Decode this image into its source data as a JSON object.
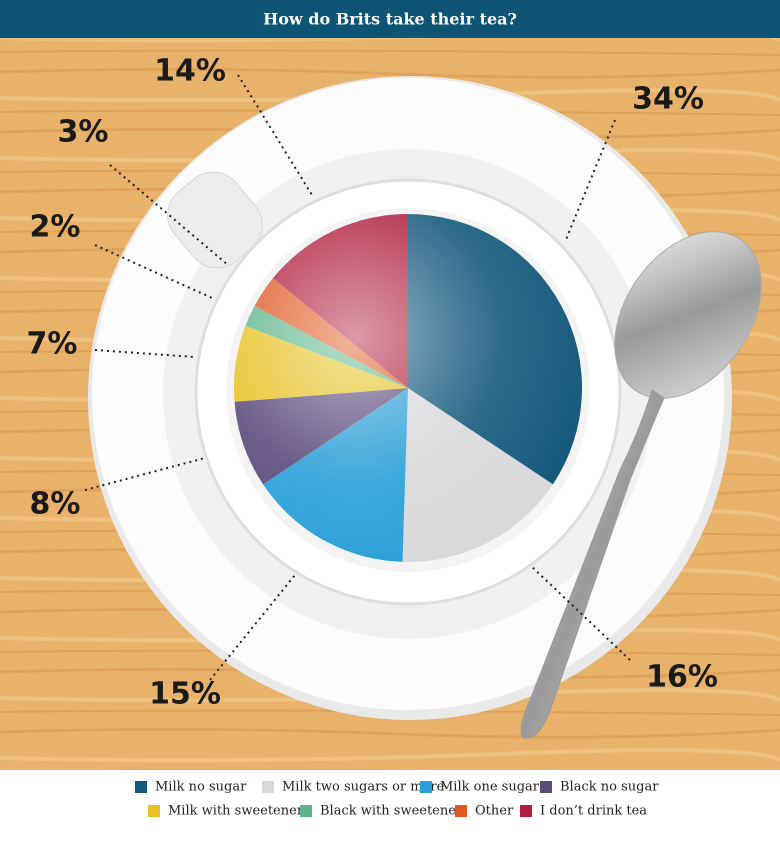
{
  "chart_data": {
    "type": "pie",
    "title": "How do Brits take their tea?",
    "categories": [
      "Milk no sugar",
      "Milk two sugars or more",
      "Milk one sugar",
      "Black no sugar",
      "Milk with sweetener",
      "Black with sweetener",
      "Other",
      "I don’t drink tea"
    ],
    "values": [
      34,
      16,
      15,
      8,
      7,
      2,
      3,
      14
    ],
    "value_labels": [
      "34%",
      "16%",
      "15%",
      "8%",
      "7%",
      "2%",
      "3%",
      "14%"
    ],
    "colors": [
      "#155a7c",
      "#d9d9db",
      "#2a9fd8",
      "#5b4b7c",
      "#e6c222",
      "#5cb68b",
      "#df5a22",
      "#b01f3e"
    ],
    "legend": "bottom"
  }
}
